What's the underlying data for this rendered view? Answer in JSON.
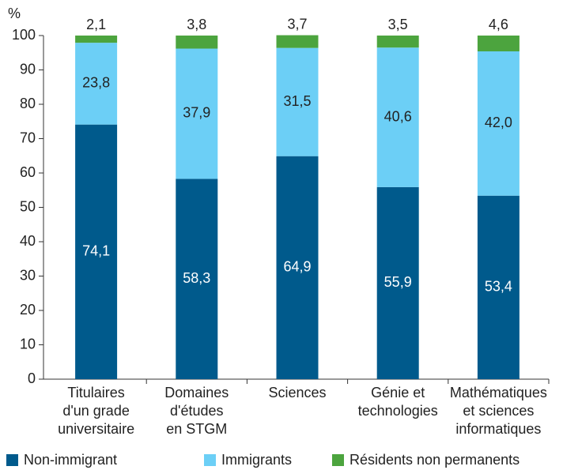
{
  "chart_data": {
    "type": "stacked_bar",
    "y_label": "%",
    "categories": [
      "Titulaires\nd'un grade\nuniversitaire",
      "Domaines\nd'études\nen STGM",
      "Sciences",
      "Génie et\ntechnologies",
      "Mathématiques\net sciences\ninformatiques"
    ],
    "series": [
      {
        "name": "Non-immigrant",
        "color": "#005a8c",
        "values": [
          74.1,
          58.3,
          64.9,
          55.9,
          53.4
        ],
        "value_labels": [
          "74,1",
          "58,3",
          "64,9",
          "55,9",
          "53,4"
        ]
      },
      {
        "name": "Immigrants",
        "color": "#6ccff6",
        "values": [
          23.8,
          37.9,
          31.5,
          40.6,
          42.0
        ],
        "value_labels": [
          "23,8",
          "37,9",
          "31,5",
          "40,6",
          "42,0"
        ]
      },
      {
        "name": "Résidents non permanents",
        "color": "#4ca43e",
        "values": [
          2.1,
          3.8,
          3.7,
          3.5,
          4.6
        ],
        "value_labels": [
          "2,1",
          "3,8",
          "3,7",
          "3,5",
          "4,6"
        ]
      }
    ],
    "ylim": [
      0,
      100
    ],
    "yticks": [
      0,
      10,
      20,
      30,
      40,
      50,
      60,
      70,
      80,
      90,
      100
    ],
    "legend": "bottom"
  }
}
